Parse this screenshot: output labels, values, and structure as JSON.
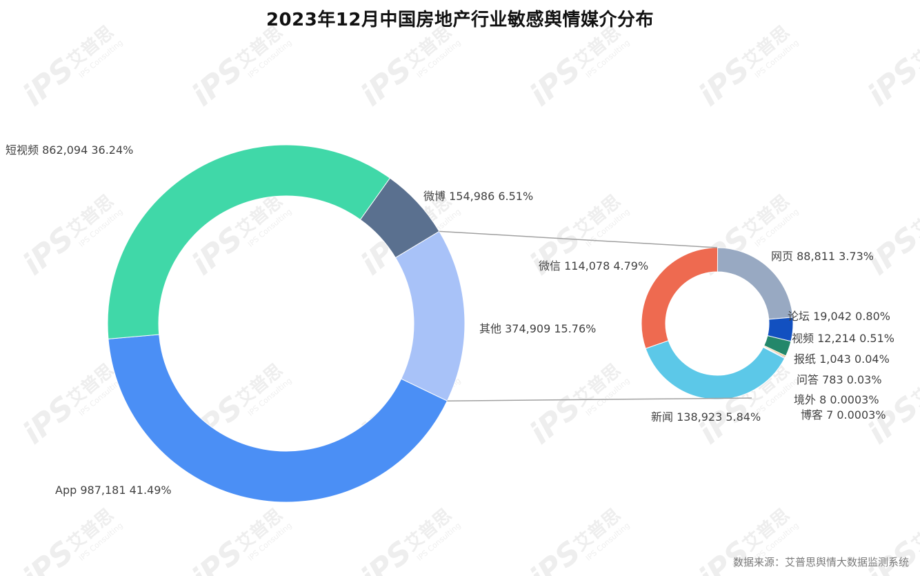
{
  "title": "2023年12月中国房地产行业敏感舆情媒介分布",
  "source_note": "数据来源：艾普思舆情大数据监测系统",
  "watermark": {
    "logo": "iPS",
    "name": "艾普思",
    "sub": "IPS Consulting"
  },
  "chart_data": [
    {
      "type": "pie",
      "variant": "donut",
      "role": "main",
      "slices": [
        {
          "name": "短视频",
          "value": 862094,
          "percent_label": "36.24%",
          "value_label": "862,094",
          "color": "#40d8a8"
        },
        {
          "name": "微博",
          "value": 154986,
          "percent_label": "6.51%",
          "value_label": "154,986",
          "color": "#5a708f"
        },
        {
          "name": "其他",
          "value": 374909,
          "percent_label": "15.76%",
          "value_label": "374,909",
          "color": "#a8c2f8"
        },
        {
          "name": "App",
          "value": 987181,
          "percent_label": "41.49%",
          "value_label": "987,181",
          "color": "#4b8ff5"
        }
      ]
    },
    {
      "type": "pie",
      "variant": "donut",
      "role": "breakdown-of-其他",
      "slices": [
        {
          "name": "网页",
          "value": 88811,
          "percent_label": "3.73%",
          "value_label": "88,811",
          "color": "#98a9c2"
        },
        {
          "name": "论坛",
          "value": 19042,
          "percent_label": "0.80%",
          "value_label": "19,042",
          "color": "#1250c0"
        },
        {
          "name": "视频",
          "value": 12214,
          "percent_label": "0.51%",
          "value_label": "12,214",
          "color": "#23876a"
        },
        {
          "name": "报纸",
          "value": 1043,
          "percent_label": "0.04%",
          "value_label": "1,043",
          "color": "#f0a020"
        },
        {
          "name": "问答",
          "value": 783,
          "percent_label": "0.03%",
          "value_label": "783",
          "color": "#6a4ca0"
        },
        {
          "name": "境外",
          "value": 8,
          "percent_label": "0.0003%",
          "value_label": "8",
          "color": "#c04040"
        },
        {
          "name": "博客",
          "value": 7,
          "percent_label": "0.0003%",
          "value_label": "7",
          "color": "#808080"
        },
        {
          "name": "新闻",
          "value": 138923,
          "percent_label": "5.84%",
          "value_label": "138,923",
          "color": "#5cc8e8"
        },
        {
          "name": "微信",
          "value": 114078,
          "percent_label": "4.79%",
          "value_label": "114,078",
          "color": "#ee6a50"
        }
      ]
    }
  ]
}
